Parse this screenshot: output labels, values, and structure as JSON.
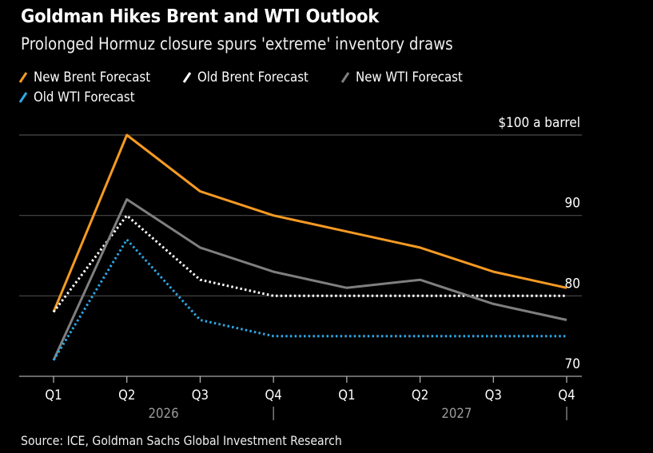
{
  "header": {
    "title": "Goldman Hikes Brent and WTI Outlook",
    "subtitle": "Prolonged Hormuz closure spurs 'extreme' inventory draws"
  },
  "legend": [
    {
      "label": "New Brent Forecast",
      "color": "#f59a23",
      "style": "solid"
    },
    {
      "label": "Old Brent Forecast",
      "color": "#ffffff",
      "style": "dotted"
    },
    {
      "label": "New WTI Forecast",
      "color": "#7f7f7f",
      "style": "solid"
    },
    {
      "label": "Old WTI Forecast",
      "color": "#2ea8e6",
      "style": "dotted"
    }
  ],
  "source": "Source: ICE, Goldman Sachs Global Investment Research",
  "chart_data": {
    "type": "line",
    "title": "Goldman Hikes Brent and WTI Outlook",
    "subtitle": "Prolonged Hormuz closure spurs 'extreme' inventory draws",
    "x": [
      "Q1",
      "Q2",
      "Q3",
      "Q4",
      "Q1",
      "Q2",
      "Q3",
      "Q4"
    ],
    "x_groups": [
      {
        "label": "2026",
        "quarters": [
          "Q1",
          "Q2",
          "Q3",
          "Q4"
        ]
      },
      {
        "label": "2027",
        "quarters": [
          "Q1",
          "Q2",
          "Q3",
          "Q4"
        ]
      }
    ],
    "ylabel": "$100 a barrel",
    "yticks": [
      {
        "value": 100,
        "label": "$100 a barrel"
      },
      {
        "value": 90,
        "label": "90"
      },
      {
        "value": 80,
        "label": "80"
      },
      {
        "value": 70,
        "label": "70"
      }
    ],
    "ylim": [
      70,
      100
    ],
    "grid": true,
    "legend_position": "top-left",
    "series": [
      {
        "name": "New Brent Forecast",
        "color": "#f59a23",
        "style": "solid",
        "values": [
          78,
          100,
          93,
          90,
          88,
          86,
          83,
          81
        ]
      },
      {
        "name": "Old Brent Forecast",
        "color": "#ffffff",
        "style": "dotted",
        "values": [
          78,
          90,
          82,
          80,
          80,
          80,
          80,
          80
        ]
      },
      {
        "name": "New WTI Forecast",
        "color": "#7f7f7f",
        "style": "solid",
        "values": [
          72,
          92,
          86,
          83,
          81,
          82,
          79,
          77
        ]
      },
      {
        "name": "Old WTI Forecast",
        "color": "#2ea8e6",
        "style": "dotted",
        "values": [
          72,
          87,
          77,
          75,
          75,
          75,
          75,
          75
        ]
      }
    ],
    "source": "Source: ICE, Goldman Sachs Global Investment Research"
  }
}
